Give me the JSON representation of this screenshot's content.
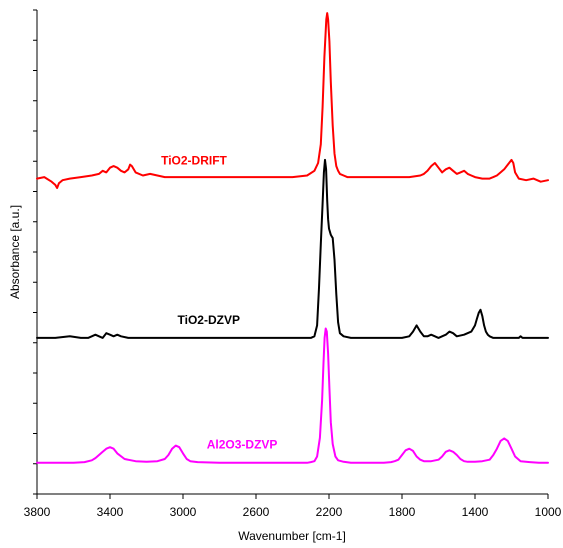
{
  "chart_data": {
    "type": "line",
    "title": "",
    "xlabel": "Wavenumber [cm-1]",
    "ylabel": "Absorbance [a.u.]",
    "xlim": [
      3800,
      1000
    ],
    "x_reversed": true,
    "x_ticks": [
      3800,
      3400,
      3000,
      2600,
      2200,
      1800,
      1400,
      1000
    ],
    "ylim": [
      0,
      15.5
    ],
    "y_tick_labels_shown": false,
    "grid": false,
    "legend": "labels placed next to each trace",
    "series": [
      {
        "name": "TiO2-DRIFT",
        "color": "#ff0000",
        "x": [
          3800,
          3760,
          3720,
          3700,
          3690,
          3680,
          3660,
          3620,
          3560,
          3500,
          3460,
          3440,
          3420,
          3400,
          3380,
          3360,
          3340,
          3320,
          3300,
          3290,
          3280,
          3260,
          3220,
          3180,
          3140,
          3100,
          3000,
          2900,
          2800,
          2700,
          2600,
          2500,
          2400,
          2320,
          2280,
          2260,
          2245,
          2235,
          2225,
          2215,
          2210,
          2205,
          2198,
          2190,
          2180,
          2170,
          2160,
          2150,
          2140,
          2120,
          2100,
          2060,
          2000,
          1900,
          1800,
          1760,
          1700,
          1680,
          1660,
          1640,
          1620,
          1600,
          1580,
          1560,
          1540,
          1520,
          1500,
          1480,
          1460,
          1440,
          1420,
          1400,
          1360,
          1320,
          1300,
          1280,
          1260,
          1240,
          1220,
          1200,
          1190,
          1180,
          1160,
          1120,
          1080,
          1040,
          1000
        ],
        "y": [
          10.1,
          10.15,
          10.0,
          9.9,
          9.8,
          9.95,
          10.05,
          10.1,
          10.15,
          10.2,
          10.25,
          10.35,
          10.3,
          10.45,
          10.5,
          10.45,
          10.35,
          10.3,
          10.4,
          10.55,
          10.5,
          10.3,
          10.2,
          10.25,
          10.2,
          10.15,
          10.15,
          10.15,
          10.15,
          10.15,
          10.15,
          10.15,
          10.15,
          10.2,
          10.35,
          10.6,
          11.2,
          12.4,
          14.0,
          15.2,
          15.4,
          15.2,
          14.5,
          13.2,
          11.8,
          10.9,
          10.5,
          10.35,
          10.25,
          10.2,
          10.15,
          10.15,
          10.15,
          10.15,
          10.15,
          10.15,
          10.2,
          10.25,
          10.35,
          10.5,
          10.6,
          10.45,
          10.3,
          10.4,
          10.45,
          10.35,
          10.25,
          10.3,
          10.35,
          10.25,
          10.2,
          10.15,
          10.1,
          10.1,
          10.15,
          10.2,
          10.3,
          10.4,
          10.55,
          10.7,
          10.6,
          10.3,
          10.1,
          10.05,
          10.1,
          10.0,
          10.05
        ]
      },
      {
        "name": "TiO2-DZVP",
        "color": "#000000",
        "x": [
          3800,
          3700,
          3620,
          3560,
          3520,
          3500,
          3480,
          3460,
          3440,
          3420,
          3400,
          3380,
          3360,
          3340,
          3300,
          3200,
          3000,
          2800,
          2600,
          2400,
          2300,
          2280,
          2265,
          2255,
          2245,
          2235,
          2228,
          2222,
          2216,
          2210,
          2205,
          2200,
          2195,
          2190,
          2185,
          2180,
          2170,
          2160,
          2150,
          2140,
          2120,
          2080,
          2000,
          1900,
          1800,
          1760,
          1740,
          1720,
          1700,
          1680,
          1660,
          1640,
          1620,
          1600,
          1580,
          1560,
          1540,
          1520,
          1500,
          1460,
          1420,
          1400,
          1390,
          1380,
          1370,
          1360,
          1350,
          1340,
          1330,
          1320,
          1300,
          1260,
          1200,
          1160,
          1150,
          1140,
          1100,
          1050,
          1000
        ],
        "y": [
          5.0,
          5.0,
          5.05,
          5.0,
          5.0,
          5.05,
          5.1,
          5.05,
          5.0,
          5.15,
          5.1,
          5.05,
          5.1,
          5.05,
          5.0,
          5.0,
          5.0,
          5.0,
          5.0,
          5.0,
          5.0,
          5.05,
          5.4,
          6.6,
          8.0,
          9.3,
          10.3,
          10.7,
          10.4,
          9.4,
          8.8,
          8.5,
          8.4,
          8.3,
          8.25,
          8.2,
          7.5,
          6.4,
          5.5,
          5.15,
          5.05,
          5.0,
          5.0,
          5.0,
          5.0,
          5.05,
          5.2,
          5.4,
          5.2,
          5.05,
          5.05,
          5.1,
          5.05,
          5.0,
          5.05,
          5.1,
          5.2,
          5.15,
          5.05,
          5.1,
          5.2,
          5.4,
          5.6,
          5.8,
          5.9,
          5.7,
          5.4,
          5.2,
          5.1,
          5.05,
          5.0,
          5.0,
          5.0,
          5.0,
          5.05,
          5.0,
          5.0,
          5.0,
          5.0
        ]
      },
      {
        "name": "Al2O3-DZVP",
        "color": "#ff00ff",
        "x": [
          3800,
          3700,
          3600,
          3540,
          3500,
          3480,
          3460,
          3440,
          3420,
          3400,
          3380,
          3360,
          3320,
          3260,
          3200,
          3140,
          3100,
          3080,
          3060,
          3040,
          3020,
          3000,
          2980,
          2960,
          2920,
          2800,
          2600,
          2400,
          2320,
          2300,
          2280,
          2265,
          2250,
          2238,
          2230,
          2224,
          2218,
          2212,
          2205,
          2198,
          2190,
          2180,
          2165,
          2150,
          2120,
          2080,
          2000,
          1900,
          1860,
          1840,
          1820,
          1800,
          1780,
          1760,
          1740,
          1720,
          1700,
          1680,
          1640,
          1600,
          1580,
          1560,
          1540,
          1520,
          1500,
          1480,
          1460,
          1440,
          1400,
          1360,
          1320,
          1300,
          1280,
          1260,
          1240,
          1220,
          1200,
          1180,
          1150,
          1100,
          1050,
          1000
        ],
        "y": [
          1.0,
          1.0,
          1.0,
          1.02,
          1.08,
          1.15,
          1.25,
          1.35,
          1.45,
          1.5,
          1.45,
          1.3,
          1.12,
          1.05,
          1.03,
          1.05,
          1.12,
          1.25,
          1.45,
          1.55,
          1.5,
          1.3,
          1.12,
          1.05,
          1.02,
          1.0,
          1.0,
          1.0,
          1.0,
          1.02,
          1.05,
          1.2,
          1.8,
          3.0,
          4.2,
          5.0,
          5.3,
          5.2,
          4.5,
          3.4,
          2.3,
          1.6,
          1.2,
          1.08,
          1.03,
          1.0,
          1.0,
          1.0,
          1.02,
          1.05,
          1.1,
          1.25,
          1.4,
          1.45,
          1.38,
          1.2,
          1.1,
          1.05,
          1.05,
          1.1,
          1.2,
          1.35,
          1.4,
          1.35,
          1.25,
          1.12,
          1.05,
          1.03,
          1.03,
          1.05,
          1.1,
          1.25,
          1.45,
          1.7,
          1.78,
          1.7,
          1.45,
          1.2,
          1.05,
          1.02,
          1.0,
          1.0
        ]
      }
    ],
    "annotations": [
      {
        "text": "TiO2-DRIFT",
        "color": "#ff0000",
        "x": 3120,
        "y": 10.55
      },
      {
        "text": "TiO2-DZVP",
        "color": "#000000",
        "x": 3030,
        "y": 5.45
      },
      {
        "text": "Al2O3-DZVP",
        "color": "#ff00ff",
        "x": 2870,
        "y": 1.45
      }
    ]
  }
}
